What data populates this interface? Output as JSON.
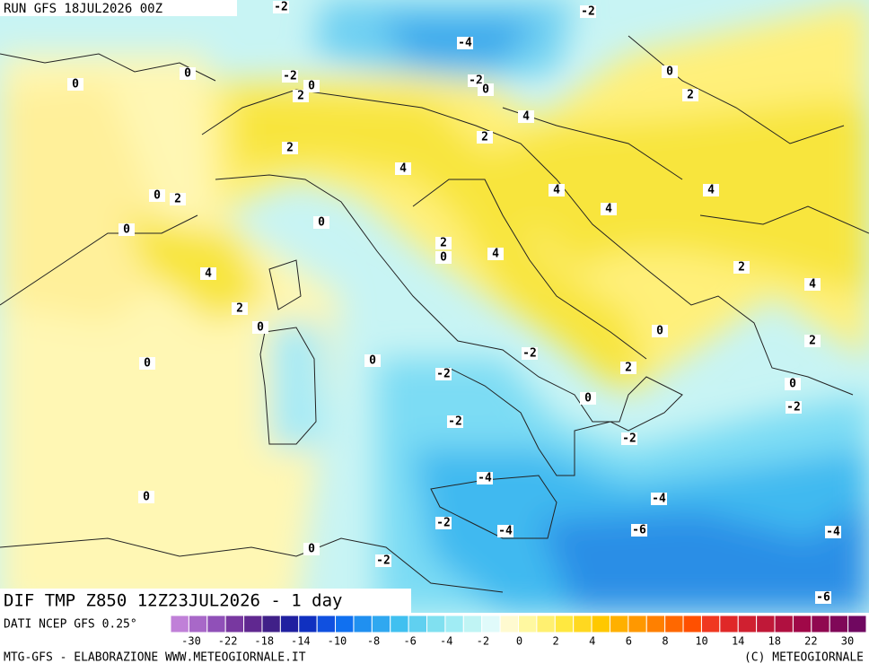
{
  "header": {
    "run": "RUN GFS 18JUL2026 00Z"
  },
  "contour_labels": [
    "-2",
    "-2",
    "-4",
    "0",
    "0",
    "-2",
    "0",
    "2",
    "-2",
    "0",
    "0",
    "2",
    "4",
    "2",
    "2",
    "4",
    "0",
    "2",
    "4",
    "4",
    "4",
    "0",
    "0",
    "2",
    "0",
    "4",
    "2",
    "4",
    "4",
    "2",
    "0",
    "0",
    "2",
    "0",
    "0",
    "-2",
    "-2",
    "2",
    "0",
    "0",
    "-2",
    "-2",
    "-2",
    "-4",
    "-4",
    "0",
    "-2",
    "-4",
    "-6",
    "-4",
    "0",
    "-2",
    "-6"
  ],
  "field": {
    "label": "DIF TMP Z850 12Z23JUL2026 - 1 day",
    "source": "DATI NCEP GFS 0.25°"
  },
  "colorbar": {
    "ticks": [
      -30,
      -22,
      -18,
      -14,
      -10,
      -8,
      -6,
      -4,
      -2,
      0,
      2,
      4,
      6,
      8,
      10,
      14,
      18,
      22,
      30
    ]
  },
  "footer": {
    "left": "MTG-GFS - ELABORAZIONE WWW.METEOGIORNALE.IT",
    "right": "(C) METEOGIORNALE"
  }
}
